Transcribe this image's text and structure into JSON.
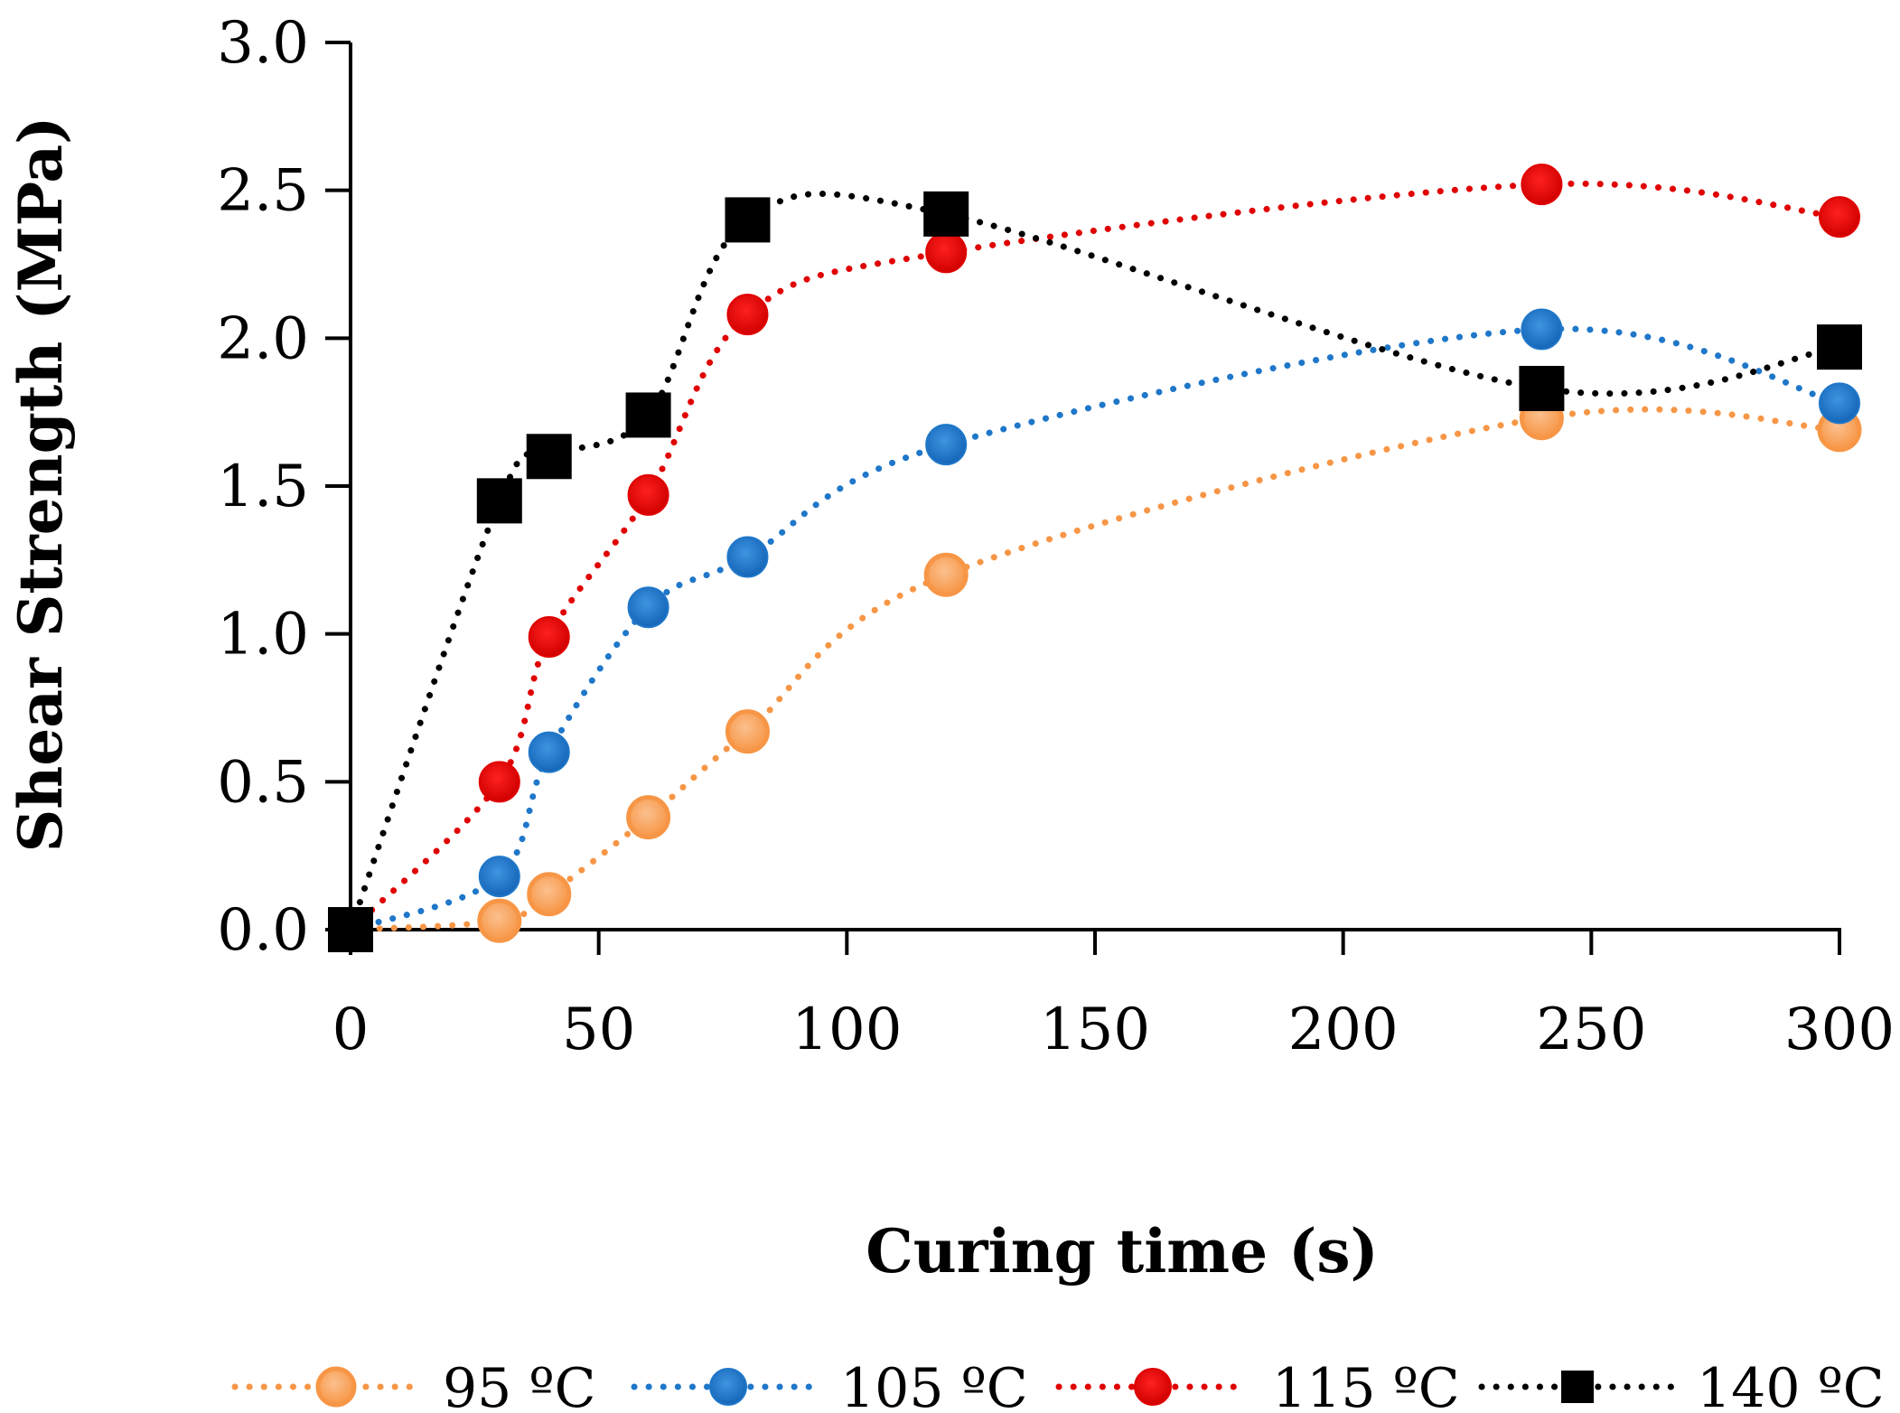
{
  "chart_data": {
    "type": "line",
    "title": "",
    "xlabel": "Curing time (s)",
    "ylabel": "Shear Strength (MPa)",
    "xlim": [
      0,
      300
    ],
    "ylim": [
      0,
      3.0
    ],
    "xticks": [
      0,
      50,
      100,
      150,
      200,
      250,
      300
    ],
    "yticks": [
      0.0,
      0.5,
      1.0,
      1.5,
      2.0,
      2.5,
      3.0
    ],
    "xtick_labels": [
      "0",
      "50",
      "100",
      "150",
      "200",
      "250",
      "300"
    ],
    "ytick_labels": [
      "0.0",
      "0.5",
      "1.0",
      "1.5",
      "2.0",
      "2.5",
      "3.0"
    ],
    "grid": false,
    "legend_position": "bottom",
    "series": [
      {
        "name": "95 ºC",
        "color": "#F79646",
        "marker": "ring-circle",
        "line_style": "dotted",
        "x": [
          0,
          30,
          40,
          60,
          80,
          120,
          240,
          300
        ],
        "y": [
          0.0,
          0.03,
          0.12,
          0.38,
          0.67,
          1.2,
          1.73,
          1.69
        ]
      },
      {
        "name": "105 ºC",
        "color": "#1F77C9",
        "marker": "circle",
        "line_style": "dotted",
        "x": [
          0,
          30,
          40,
          60,
          80,
          120,
          240,
          300
        ],
        "y": [
          0.0,
          0.18,
          0.6,
          1.09,
          1.26,
          1.64,
          2.03,
          1.78
        ]
      },
      {
        "name": "115 ºC",
        "color": "#E00000",
        "marker": "circle",
        "line_style": "dotted",
        "x": [
          0,
          30,
          40,
          60,
          80,
          120,
          240,
          300
        ],
        "y": [
          0.0,
          0.5,
          0.99,
          1.47,
          2.08,
          2.29,
          2.52,
          2.41
        ]
      },
      {
        "name": "140 ºC",
        "color": "#000000",
        "marker": "square",
        "line_style": "dotted",
        "x": [
          0,
          30,
          40,
          60,
          80,
          120,
          240,
          300
        ],
        "y": [
          0.0,
          1.45,
          1.6,
          1.74,
          2.4,
          2.42,
          1.83,
          1.97
        ]
      }
    ]
  }
}
